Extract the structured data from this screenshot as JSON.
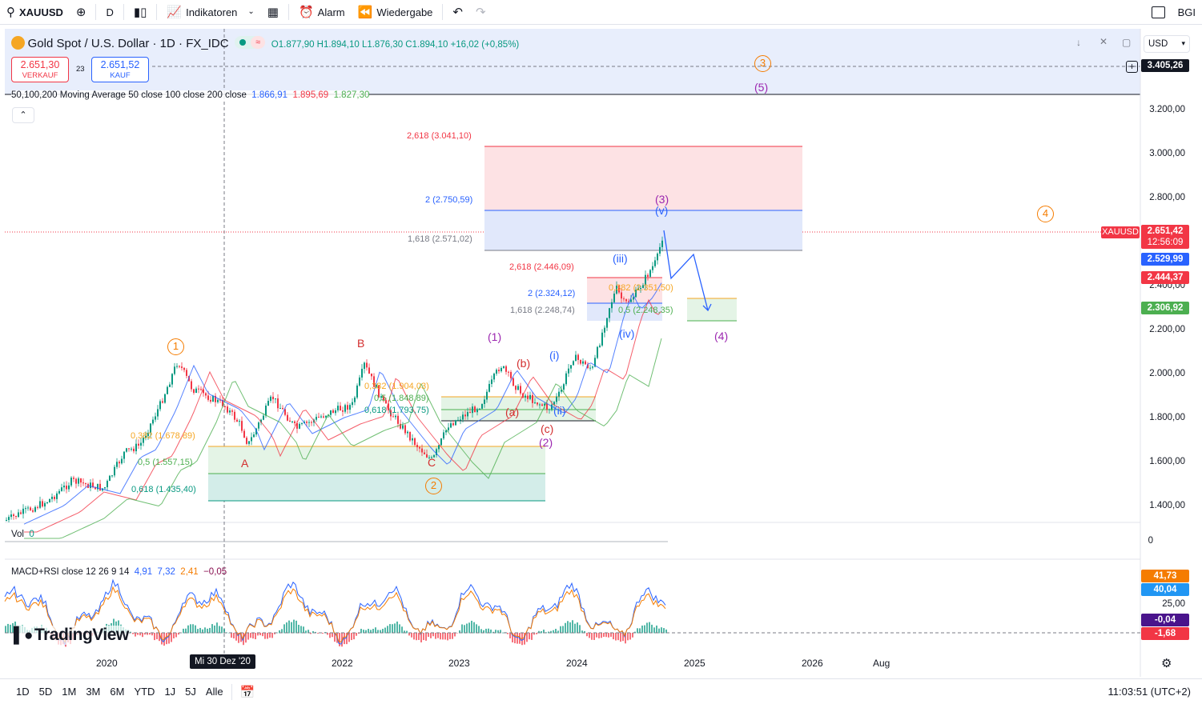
{
  "toolbar": {
    "symbol": "XAUUSD",
    "interval": "D",
    "indicators_label": "Indikatoren",
    "alert_label": "Alarm",
    "replay_label": "Wiedergabe",
    "right_label": "BGI"
  },
  "legend": {
    "title": "Gold Spot / U.S. Dollar · 1D · FX_IDC",
    "ohlc": "O1.877,90  H1.894,10  L1.876,30  C1.894,10  +16,02 (+0,85%)",
    "sell_price": "2.651,30",
    "sell_label": "VERKAUF",
    "spread": "23",
    "buy_price": "2.651,52",
    "buy_label": "KAUF",
    "ma_title": "50,100,200 Moving Average 50 close 100 close 200 close",
    "ma50": "1.866,91",
    "ma100": "1.895,69",
    "ma200": "1.827,30",
    "vol_title": "Vol",
    "vol_value": "0",
    "macd_title": "MACD+RSI close 12 26 9 14",
    "macd_v1": "4,91",
    "macd_v2": "7,32",
    "macd_v3": "2,41",
    "macd_v4": "−0,05"
  },
  "colors": {
    "ma50": "#2962ff",
    "ma100": "#f23645",
    "ma200": "#4caf50",
    "up": "#089981",
    "down": "#f23645",
    "wave_orange": "#f57c00",
    "wave_purple": "#9c27b0",
    "wave_blue": "#2962ff",
    "wave_red": "#d32f2f"
  },
  "price_axis": {
    "currency": "USD",
    "labels": [
      "3.200,00",
      "3.000,00",
      "2.800,00",
      "2.400,00",
      "2.200,00",
      "2.000,00",
      "1.800,00",
      "1.600,00",
      "1.400,00"
    ],
    "top_tag": "3.405,26",
    "symbol_tag": "XAUUSD",
    "last_price": "2.651,42",
    "countdown": "12:56:09",
    "tag_blue": "2.529,99",
    "tag_red": "2.444,37",
    "tag_green": "2.306,92",
    "vol_zero": "0",
    "rsi_a": "41,73",
    "rsi_b": "40,04",
    "rsi_level": "25,00",
    "macd_a": "-0,04",
    "macd_b": "-1,68"
  },
  "time_axis": {
    "labels": [
      "2020",
      "2022",
      "2023",
      "2024",
      "2025",
      "2026",
      "Aug"
    ],
    "cursor_label": "Mi 30 Dez '20"
  },
  "annotations": {
    "w1": "1",
    "w2": "2",
    "w3": "3",
    "w4": "4",
    "A": "A",
    "B": "B",
    "C": "C",
    "p1": "(1)",
    "p2": "(2)",
    "p3": "(3)",
    "p4": "(4)",
    "p5": "(5)",
    "a": "(a)",
    "b": "(b)",
    "c": "(c)",
    "i": "(i)",
    "ii": "(ii)",
    "iii": "(iii)",
    "iv": "(iv)",
    "v": "(v)",
    "fib_3041": "2,618 (3.041,10)",
    "fib_2750": "2 (2.750,59)",
    "fib_2571": "1,618 (2.571,02)",
    "fib_2446": "2,618 (2.446,09)",
    "fib_2324": "2 (2.324,12)",
    "fib_2248a": "1,618 (2.248,74)",
    "fib_2351": "0,382 (2.351,50)",
    "fib_2248b": "0,5 (2.248,35)",
    "fib_1904": "0,382 (1.904,03)",
    "fib_1848": "0,5 (1.848,89)",
    "fib_1793": "0,618 (1.793,75)",
    "fib_1678": "0,382 (1.678,89)",
    "fib_1557": "0,5 (1.557,15)",
    "fib_1435": "0,618 (1.435,40)"
  },
  "brand": "TradingView",
  "bottom": {
    "ranges": [
      "1D",
      "5D",
      "1M",
      "3M",
      "6M",
      "YTD",
      "1J",
      "5J",
      "Alle"
    ],
    "clock": "11:03:51 (UTC+2)"
  }
}
